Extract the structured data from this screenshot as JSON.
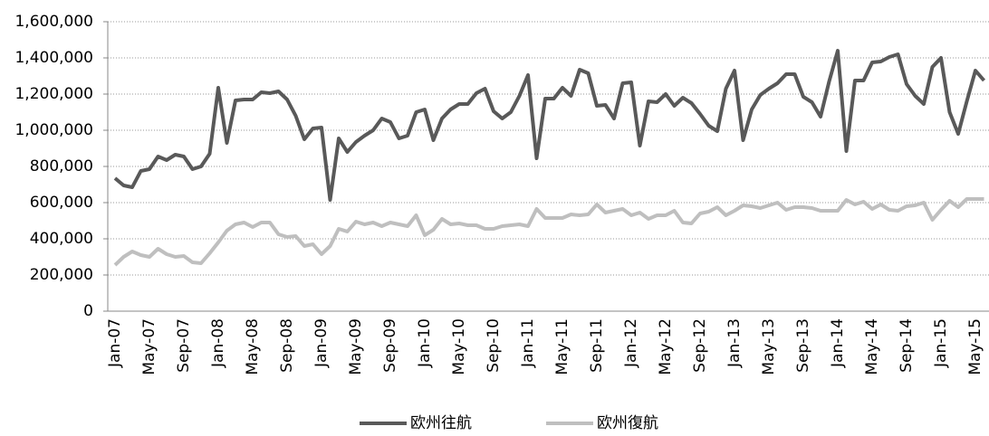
{
  "chart_data": {
    "type": "line",
    "categories": [
      "Jan-07",
      null,
      null,
      null,
      "May-07",
      null,
      null,
      null,
      "Sep-07",
      null,
      null,
      null,
      "Jan-08",
      null,
      null,
      null,
      "May-08",
      null,
      null,
      null,
      "Sep-08",
      null,
      null,
      null,
      "Jan-09",
      null,
      null,
      null,
      "May-09",
      null,
      null,
      null,
      "Sep-09",
      null,
      null,
      null,
      "Jan-10",
      null,
      null,
      null,
      "May-10",
      null,
      null,
      null,
      "Sep-10",
      null,
      null,
      null,
      "Jan-11",
      null,
      null,
      null,
      "May-11",
      null,
      null,
      null,
      "Sep-11",
      null,
      null,
      null,
      "Jan-12",
      null,
      null,
      null,
      "May-12",
      null,
      null,
      null,
      "Sep-12",
      null,
      null,
      null,
      "Jan-13",
      null,
      null,
      null,
      "May-13",
      null,
      null,
      null,
      "Sep-13",
      null,
      null,
      null,
      "Jan-14",
      null,
      null,
      null,
      "May-14",
      null,
      null,
      null,
      "Sep-14",
      null,
      null,
      null,
      "Jan-15",
      null,
      null,
      null,
      "May-15",
      null
    ],
    "series": [
      {
        "name": "欧州往航",
        "color": "#595959",
        "values": [
          735000,
          695000,
          685000,
          775000,
          785000,
          855000,
          835000,
          865000,
          855000,
          785000,
          800000,
          870000,
          1235000,
          930000,
          1165000,
          1170000,
          1170000,
          1210000,
          1205000,
          1215000,
          1170000,
          1080000,
          950000,
          1010000,
          1015000,
          615000,
          955000,
          880000,
          935000,
          970000,
          1000000,
          1065000,
          1045000,
          955000,
          970000,
          1100000,
          1115000,
          945000,
          1065000,
          1115000,
          1145000,
          1145000,
          1205000,
          1230000,
          1105000,
          1065000,
          1100000,
          1190000,
          1305000,
          845000,
          1175000,
          1175000,
          1235000,
          1190000,
          1335000,
          1315000,
          1135000,
          1140000,
          1065000,
          1260000,
          1265000,
          915000,
          1160000,
          1155000,
          1200000,
          1135000,
          1180000,
          1150000,
          1090000,
          1025000,
          995000,
          1230000,
          1330000,
          945000,
          1115000,
          1195000,
          1230000,
          1260000,
          1310000,
          1310000,
          1185000,
          1155000,
          1075000,
          1270000,
          1440000,
          885000,
          1275000,
          1275000,
          1375000,
          1380000,
          1405000,
          1420000,
          1255000,
          1190000,
          1145000,
          1350000,
          1400000,
          1100000,
          980000,
          1160000,
          1330000,
          1275000
        ]
      },
      {
        "name": "欧州復航",
        "color": "#bfbfbf",
        "values": [
          255000,
          300000,
          330000,
          310000,
          300000,
          345000,
          315000,
          300000,
          305000,
          270000,
          265000,
          320000,
          380000,
          445000,
          480000,
          490000,
          465000,
          490000,
          490000,
          425000,
          410000,
          415000,
          360000,
          370000,
          315000,
          360000,
          455000,
          440000,
          495000,
          480000,
          490000,
          470000,
          490000,
          480000,
          470000,
          530000,
          420000,
          450000,
          510000,
          480000,
          485000,
          475000,
          475000,
          455000,
          455000,
          470000,
          475000,
          480000,
          470000,
          565000,
          515000,
          515000,
          515000,
          535000,
          530000,
          535000,
          590000,
          545000,
          555000,
          565000,
          530000,
          545000,
          510000,
          530000,
          530000,
          555000,
          490000,
          485000,
          540000,
          550000,
          575000,
          530000,
          555000,
          585000,
          580000,
          570000,
          585000,
          600000,
          560000,
          575000,
          575000,
          570000,
          555000,
          555000,
          555000,
          615000,
          590000,
          605000,
          565000,
          590000,
          560000,
          555000,
          580000,
          585000,
          600000,
          505000,
          560000,
          610000,
          575000,
          620000,
          620000,
          620000
        ]
      }
    ],
    "ylim": [
      0,
      1600000
    ],
    "yticks": [
      0,
      {
        "value": 200000,
        "label": "200,000"
      },
      {
        "value": 400000,
        "label": "400,000"
      },
      {
        "value": 600000,
        "label": "600,000"
      },
      {
        "value": 800000,
        "label": "800,000"
      },
      {
        "value": 1000000,
        "label": "1,000,000"
      },
      {
        "value": 1200000,
        "label": "1,200,000"
      },
      {
        "value": 1400000,
        "label": "1,400,000"
      },
      {
        "value": 1600000,
        "label": "1,600,000"
      }
    ],
    "grid": true
  }
}
